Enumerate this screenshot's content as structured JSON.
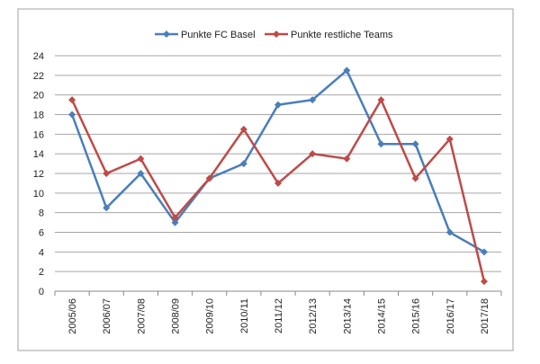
{
  "chart_data": {
    "type": "line",
    "title": "",
    "xlabel": "",
    "ylabel": "",
    "categories": [
      "2005/06",
      "2006/07",
      "2007/08",
      "2008/09",
      "2009/10",
      "2010/11",
      "2011/12",
      "2012/13",
      "2013/14",
      "2014/15",
      "2015/16",
      "2016/17",
      "2017/18"
    ],
    "ylim": [
      0,
      24
    ],
    "yticks": [
      0,
      2,
      4,
      6,
      8,
      10,
      12,
      14,
      16,
      18,
      20,
      22,
      24
    ],
    "grid": true,
    "legend_position": "top",
    "series": [
      {
        "name": "Punkte FC Basel",
        "color": "#4a7ebb",
        "values": [
          18,
          8.5,
          12,
          7,
          11.5,
          13,
          19,
          19.5,
          22.5,
          15,
          15,
          6,
          4
        ]
      },
      {
        "name": "Punkte restliche Teams",
        "color": "#be4b48",
        "values": [
          19.5,
          12,
          13.5,
          7.5,
          11.5,
          16.5,
          11,
          14,
          13.5,
          19.5,
          11.5,
          15.5,
          1
        ]
      }
    ]
  }
}
